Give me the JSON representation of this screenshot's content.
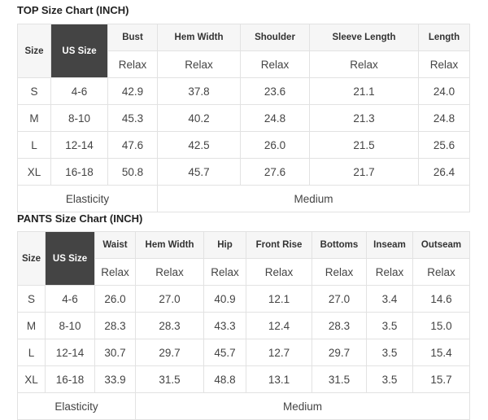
{
  "top": {
    "title": "TOP Size Chart (INCH)",
    "headers": [
      "Size",
      "US Size",
      "Bust",
      "Hem Width",
      "Shoulder",
      "Sleeve Length",
      "Length"
    ],
    "sub": "Relax",
    "rows": [
      [
        "S",
        "4-6",
        "42.9",
        "37.8",
        "23.6",
        "21.1",
        "24.0"
      ],
      [
        "M",
        "8-10",
        "45.3",
        "40.2",
        "24.8",
        "21.3",
        "24.8"
      ],
      [
        "L",
        "12-14",
        "47.6",
        "42.5",
        "26.0",
        "21.5",
        "25.6"
      ],
      [
        "XL",
        "16-18",
        "50.8",
        "45.7",
        "27.6",
        "21.7",
        "26.4"
      ]
    ],
    "elasticity_label": "Elasticity",
    "elasticity_value": "Medium"
  },
  "pants": {
    "title": "PANTS Size Chart (INCH)",
    "headers": [
      "Size",
      "US Size",
      "Waist",
      "Hem Width",
      "Hip",
      "Front Rise",
      "Bottoms",
      "Inseam",
      "Outseam"
    ],
    "sub": "Relax",
    "rows": [
      [
        "S",
        "4-6",
        "26.0",
        "27.0",
        "40.9",
        "12.1",
        "27.0",
        "3.4",
        "14.6"
      ],
      [
        "M",
        "8-10",
        "28.3",
        "28.3",
        "43.3",
        "12.4",
        "28.3",
        "3.5",
        "15.0"
      ],
      [
        "L",
        "12-14",
        "30.7",
        "29.7",
        "45.7",
        "12.7",
        "29.7",
        "3.5",
        "15.4"
      ],
      [
        "XL",
        "16-18",
        "33.9",
        "31.5",
        "48.8",
        "13.1",
        "31.5",
        "3.5",
        "15.7"
      ]
    ],
    "elasticity_label": "Elasticity",
    "elasticity_value": "Medium"
  }
}
